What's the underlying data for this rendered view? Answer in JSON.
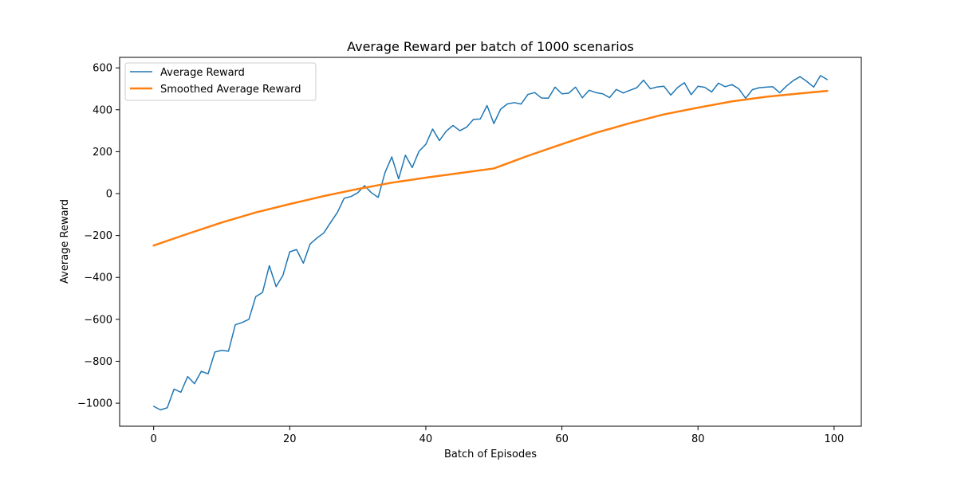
{
  "chart_data": {
    "type": "line",
    "title": "Average Reward per batch of 1000 scenarios",
    "xlabel": "Batch of Episodes",
    "ylabel": "Average Reward",
    "xlim": [
      -5,
      104
    ],
    "ylim": [
      -1110,
      650
    ],
    "x_ticks": [
      0,
      20,
      40,
      60,
      80,
      100
    ],
    "y_ticks": [
      -1000,
      -800,
      -600,
      -400,
      -200,
      0,
      200,
      400,
      600
    ],
    "grid": false,
    "legend_position": "top-left",
    "series": [
      {
        "name": "Average Reward",
        "color": "#1f77b4",
        "x": [
          0,
          1,
          2,
          3,
          4,
          5,
          6,
          7,
          8,
          9,
          10,
          11,
          12,
          13,
          14,
          15,
          16,
          17,
          18,
          19,
          20,
          21,
          22,
          23,
          24,
          25,
          26,
          27,
          28,
          29,
          30,
          31,
          32,
          33,
          34,
          35,
          36,
          37,
          38,
          39,
          40,
          41,
          42,
          43,
          44,
          45,
          46,
          47,
          48,
          49,
          50,
          51,
          52,
          53,
          54,
          55,
          56,
          57,
          58,
          59,
          60,
          61,
          62,
          63,
          64,
          65,
          66,
          67,
          68,
          69,
          70,
          71,
          72,
          73,
          74,
          75,
          76,
          77,
          78,
          79,
          80,
          81,
          82,
          83,
          84,
          85,
          86,
          87,
          88,
          89,
          90,
          91,
          92,
          93,
          94,
          95,
          96,
          97,
          98,
          99
        ],
        "values": [
          -1015,
          -1032,
          -1022,
          -933,
          -948,
          -873,
          -907,
          -848,
          -860,
          -756,
          -748,
          -752,
          -626,
          -615,
          -600,
          -492,
          -472,
          -344,
          -444,
          -390,
          -278,
          -267,
          -332,
          -240,
          -212,
          -188,
          -138,
          -90,
          -22,
          -14,
          4,
          38,
          4,
          -18,
          100,
          175,
          70,
          183,
          124,
          202,
          235,
          308,
          253,
          298,
          325,
          300,
          317,
          354,
          356,
          420,
          334,
          403,
          428,
          434,
          427,
          473,
          482,
          456,
          455,
          508,
          476,
          479,
          508,
          457,
          493,
          482,
          476,
          458,
          497,
          480,
          493,
          505,
          541,
          500,
          509,
          512,
          470,
          506,
          529,
          472,
          512,
          507,
          485,
          527,
          510,
          520,
          500,
          455,
          496,
          505,
          508,
          510,
          481,
          513,
          539,
          558,
          535,
          508,
          563,
          544
        ]
      },
      {
        "name": "Smoothed Average Reward",
        "color": "#ff7f0e",
        "x": [
          0,
          5,
          10,
          15,
          20,
          25,
          30,
          35,
          40,
          45,
          50,
          55,
          60,
          65,
          70,
          75,
          80,
          85,
          90,
          95,
          99
        ],
        "values": [
          -248,
          -192,
          -138,
          -90,
          -50,
          -12,
          22,
          52,
          76,
          98,
          120,
          180,
          236,
          290,
          336,
          378,
          410,
          440,
          462,
          478,
          490
        ]
      }
    ]
  }
}
